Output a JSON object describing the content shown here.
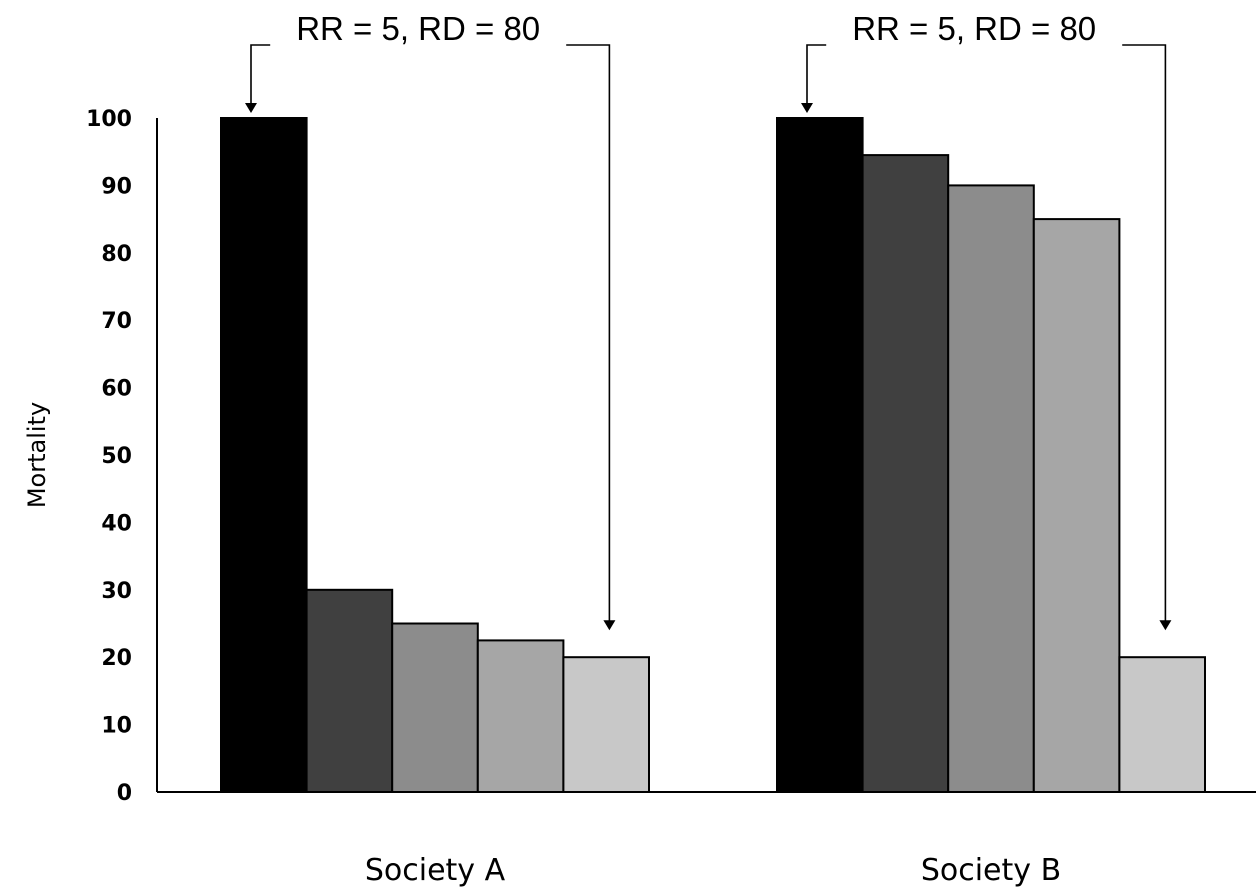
{
  "chart_data": {
    "type": "bar",
    "title": "",
    "xlabel": "",
    "ylabel": "Mortality",
    "ylim": [
      0,
      100
    ],
    "yticks": [
      0,
      10,
      20,
      30,
      40,
      50,
      60,
      70,
      80,
      90,
      100
    ],
    "grid": false,
    "legend": "none",
    "categories": [
      "Society A",
      "Society B"
    ],
    "series": [
      {
        "color": "#000000",
        "values": [
          100,
          100
        ]
      },
      {
        "color": "#404040",
        "values": [
          30,
          94.5
        ]
      },
      {
        "color": "#8c8c8c",
        "values": [
          25,
          90
        ]
      },
      {
        "color": "#a6a6a6",
        "values": [
          22.5,
          85
        ]
      },
      {
        "color": "#c8c8c8",
        "values": [
          20,
          20
        ]
      }
    ],
    "annotations": [
      {
        "group": 0,
        "text": "RR = 5, RD = 80",
        "from_series": 0,
        "to_series": 4
      },
      {
        "group": 1,
        "text": "RR = 5, RD = 80",
        "from_series": 0,
        "to_series": 4
      }
    ]
  }
}
